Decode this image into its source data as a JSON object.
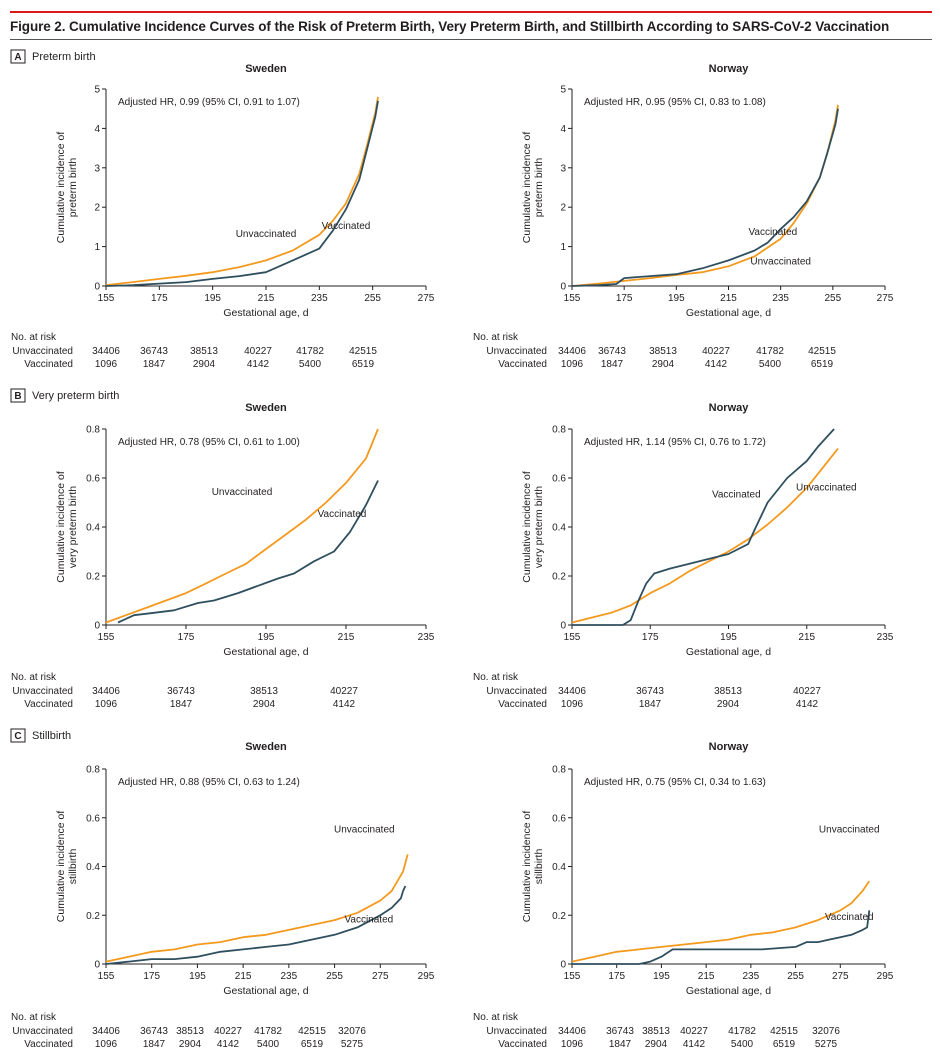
{
  "figure": {
    "title": "Figure 2. Cumulative Incidence Curves of the Risk of Preterm Birth, Very Preterm Birth, and Stillbirth According to SARS-CoV-2 Vaccination"
  },
  "colors": {
    "unvaccinated": "#f39a1e",
    "vaccinated": "#2f4f5f",
    "rule": "#d7191c"
  },
  "chart_data": [
    {
      "type": "line",
      "panel": "A",
      "panel_title": "Preterm birth",
      "title": "Sweden",
      "xlabel": "Gestational age, d",
      "ylabel": [
        "Cumulative incidence of",
        "preterm birth"
      ],
      "xlim": [
        155,
        275
      ],
      "ylim": [
        0,
        5
      ],
      "xticks": [
        "155",
        "175",
        "195",
        "215",
        "235",
        "255",
        "275"
      ],
      "yticks": [
        "0",
        "1",
        "2",
        "3",
        "4",
        "5"
      ],
      "annotation": "Adjusted HR, 0.99 (95% CI, 0.91 to 1.07)",
      "series": [
        {
          "name": "Unvaccinated",
          "label_at": [
            215,
            1.25
          ],
          "x": [
            155,
            165,
            175,
            185,
            195,
            205,
            215,
            225,
            235,
            240,
            245,
            250,
            253,
            256,
            257
          ],
          "y": [
            0.02,
            0.1,
            0.18,
            0.26,
            0.35,
            0.48,
            0.65,
            0.9,
            1.3,
            1.65,
            2.1,
            2.85,
            3.6,
            4.4,
            4.8
          ]
        },
        {
          "name": "Vaccinated",
          "label_at": [
            245,
            1.45
          ],
          "x": [
            155,
            165,
            175,
            185,
            195,
            205,
            215,
            225,
            235,
            240,
            245,
            250,
            253,
            256,
            257
          ],
          "y": [
            0,
            0.02,
            0.06,
            0.1,
            0.18,
            0.25,
            0.35,
            0.65,
            0.95,
            1.4,
            1.95,
            2.7,
            3.5,
            4.3,
            4.7
          ]
        }
      ],
      "at_risk": {
        "header": "No. at risk",
        "rows": [
          {
            "label": "Unvaccinated",
            "values": [
              "34406",
              "36743",
              "38513",
              "40227",
              "41782",
              "42515"
            ]
          },
          {
            "label": "Vaccinated",
            "values": [
              "1096",
              "1847",
              "2904",
              "4142",
              "5400",
              "6519"
            ]
          }
        ]
      }
    },
    {
      "type": "line",
      "panel": "A",
      "title": "Norway",
      "xlabel": "Gestational age, d",
      "ylabel": [
        "Cumulative incidence of",
        "preterm birth"
      ],
      "xlim": [
        155,
        275
      ],
      "ylim": [
        0,
        5
      ],
      "xticks": [
        "155",
        "175",
        "195",
        "215",
        "235",
        "255",
        "275"
      ],
      "yticks": [
        "0",
        "1",
        "2",
        "3",
        "4",
        "5"
      ],
      "annotation": "Adjusted HR, 0.95 (95% CI, 0.83 to 1.08)",
      "series": [
        {
          "name": "Unvaccinated",
          "label_at": [
            235,
            0.55
          ],
          "x": [
            155,
            165,
            175,
            185,
            195,
            205,
            215,
            225,
            235,
            240,
            245,
            250,
            253,
            256,
            257
          ],
          "y": [
            0,
            0.06,
            0.13,
            0.2,
            0.28,
            0.35,
            0.5,
            0.75,
            1.2,
            1.6,
            2.1,
            2.75,
            3.4,
            4.2,
            4.6
          ]
        },
        {
          "name": "Vaccinated",
          "label_at": [
            232,
            1.3
          ],
          "x": [
            155,
            165,
            172,
            175,
            185,
            195,
            205,
            215,
            225,
            230,
            235,
            240,
            245,
            250,
            253,
            256,
            257
          ],
          "y": [
            0,
            0.02,
            0.05,
            0.2,
            0.25,
            0.3,
            0.45,
            0.65,
            0.9,
            1.1,
            1.45,
            1.75,
            2.15,
            2.75,
            3.4,
            4.1,
            4.5
          ]
        }
      ],
      "at_risk": {
        "header": "No. at risk",
        "rows": [
          {
            "label": "Unvaccinated",
            "values": [
              "34406",
              "36743",
              "38513",
              "40227",
              "41782",
              "42515"
            ]
          },
          {
            "label": "Vaccinated",
            "values": [
              "1096",
              "1847",
              "2904",
              "4142",
              "5400",
              "6519"
            ]
          }
        ]
      }
    },
    {
      "type": "line",
      "panel": "B",
      "panel_title": "Very preterm birth",
      "title": "Sweden",
      "xlabel": "Gestational age, d",
      "ylabel": [
        "Cumulative incidence of",
        "very preterm birth"
      ],
      "xlim": [
        155,
        235
      ],
      "ylim": [
        0,
        0.8
      ],
      "xticks": [
        "155",
        "175",
        "195",
        "215",
        "235"
      ],
      "yticks": [
        "0",
        "0.2",
        "0.4",
        "0.6",
        "0.8"
      ],
      "annotation": "Adjusted HR, 0.78 (95% CI, 0.61 to 1.00)",
      "series": [
        {
          "name": "Unvaccinated",
          "label_at": [
            189,
            0.53
          ],
          "x": [
            155,
            160,
            165,
            170,
            175,
            180,
            185,
            190,
            195,
            200,
            205,
            210,
            215,
            220,
            223
          ],
          "y": [
            0.01,
            0.04,
            0.07,
            0.1,
            0.13,
            0.17,
            0.21,
            0.25,
            0.31,
            0.37,
            0.43,
            0.5,
            0.58,
            0.68,
            0.8
          ]
        },
        {
          "name": "Vaccinated",
          "label_at": [
            214,
            0.44
          ],
          "x": [
            158,
            162,
            167,
            172,
            178,
            182,
            188,
            193,
            198,
            202,
            207,
            212,
            216,
            220,
            223
          ],
          "y": [
            0.01,
            0.04,
            0.05,
            0.06,
            0.09,
            0.1,
            0.13,
            0.16,
            0.19,
            0.21,
            0.26,
            0.3,
            0.38,
            0.49,
            0.59
          ]
        }
      ],
      "at_risk": {
        "header": "No. at risk",
        "rows": [
          {
            "label": "Unvaccinated",
            "values": [
              "34406",
              "36743",
              "38513",
              "40227"
            ]
          },
          {
            "label": "Vaccinated",
            "values": [
              "1096",
              "1847",
              "2904",
              "4142"
            ]
          }
        ]
      }
    },
    {
      "type": "line",
      "panel": "B",
      "title": "Norway",
      "xlabel": "Gestational age, d",
      "ylabel": [
        "Cumulative incidence of",
        "very preterm birth"
      ],
      "xlim": [
        155,
        235
      ],
      "ylim": [
        0,
        0.8
      ],
      "xticks": [
        "155",
        "175",
        "195",
        "215",
        "235"
      ],
      "yticks": [
        "0",
        "0.2",
        "0.4",
        "0.6",
        "0.8"
      ],
      "annotation": "Adjusted HR, 1.14 (95% CI, 0.76 to 1.72)",
      "series": [
        {
          "name": "Unvaccinated",
          "label_at": [
            220,
            0.55
          ],
          "x": [
            155,
            160,
            165,
            170,
            175,
            180,
            185,
            190,
            195,
            200,
            205,
            210,
            215,
            220,
            223
          ],
          "y": [
            0.01,
            0.03,
            0.05,
            0.08,
            0.13,
            0.17,
            0.22,
            0.26,
            0.3,
            0.35,
            0.41,
            0.48,
            0.56,
            0.66,
            0.72
          ]
        },
        {
          "name": "Vaccinated",
          "label_at": [
            197,
            0.52
          ],
          "x": [
            155,
            168,
            170,
            172,
            174,
            176,
            180,
            185,
            190,
            195,
            200,
            202,
            205,
            210,
            215,
            218,
            222
          ],
          "y": [
            0,
            0,
            0.02,
            0.1,
            0.17,
            0.21,
            0.23,
            0.25,
            0.27,
            0.29,
            0.33,
            0.4,
            0.5,
            0.6,
            0.67,
            0.73,
            0.8
          ]
        }
      ],
      "at_risk": {
        "header": "No. at risk",
        "rows": [
          {
            "label": "Unvaccinated",
            "values": [
              "34406",
              "36743",
              "38513",
              "40227"
            ]
          },
          {
            "label": "Vaccinated",
            "values": [
              "1096",
              "1847",
              "2904",
              "4142"
            ]
          }
        ]
      }
    },
    {
      "type": "line",
      "panel": "C",
      "panel_title": "Stillbirth",
      "title": "Sweden",
      "xlabel": "Gestational age, d",
      "ylabel": [
        "Cumulative incidence of",
        "stillbirth"
      ],
      "xlim": [
        155,
        295
      ],
      "ylim": [
        0,
        0.8
      ],
      "xticks": [
        "155",
        "175",
        "195",
        "215",
        "235",
        "255",
        "275",
        "295"
      ],
      "yticks": [
        "0",
        "0.2",
        "0.4",
        "0.6",
        "0.8"
      ],
      "annotation": "Adjusted HR, 0.88 (95% CI, 0.63 to 1.24)",
      "series": [
        {
          "name": "Unvaccinated",
          "label_at": [
            268,
            0.54
          ],
          "x": [
            155,
            165,
            175,
            185,
            195,
            205,
            215,
            225,
            235,
            245,
            255,
            265,
            275,
            280,
            285,
            287
          ],
          "y": [
            0.01,
            0.03,
            0.05,
            0.06,
            0.08,
            0.09,
            0.11,
            0.12,
            0.14,
            0.16,
            0.18,
            0.21,
            0.26,
            0.3,
            0.38,
            0.45
          ]
        },
        {
          "name": "Vaccinated",
          "label_at": [
            270,
            0.17
          ],
          "x": [
            155,
            165,
            175,
            185,
            195,
            205,
            215,
            225,
            235,
            245,
            255,
            265,
            275,
            280,
            284,
            285,
            286
          ],
          "y": [
            0,
            0.01,
            0.02,
            0.02,
            0.03,
            0.05,
            0.06,
            0.07,
            0.08,
            0.1,
            0.12,
            0.15,
            0.2,
            0.23,
            0.27,
            0.3,
            0.32
          ]
        }
      ],
      "at_risk": {
        "header": "No. at risk",
        "rows": [
          {
            "label": "Unvaccinated",
            "values": [
              "34406",
              "36743",
              "38513",
              "40227",
              "41782",
              "42515",
              "32076"
            ]
          },
          {
            "label": "Vaccinated",
            "values": [
              "1096",
              "1847",
              "2904",
              "4142",
              "5400",
              "6519",
              "5275"
            ]
          }
        ]
      }
    },
    {
      "type": "line",
      "panel": "C",
      "title": "Norway",
      "xlabel": "Gestational age, d",
      "ylabel": [
        "Cumulative incidence of",
        "stillbirth"
      ],
      "xlim": [
        155,
        295
      ],
      "ylim": [
        0,
        0.8
      ],
      "xticks": [
        "155",
        "175",
        "195",
        "215",
        "235",
        "255",
        "275",
        "295"
      ],
      "yticks": [
        "0",
        "0.2",
        "0.4",
        "0.6",
        "0.8"
      ],
      "annotation": "Adjusted HR, 0.75 (95% CI, 0.34 to 1.63)",
      "series": [
        {
          "name": "Unvaccinated",
          "label_at": [
            279,
            0.54
          ],
          "x": [
            155,
            165,
            175,
            185,
            195,
            205,
            215,
            225,
            235,
            245,
            255,
            265,
            275,
            280,
            285,
            288
          ],
          "y": [
            0.01,
            0.03,
            0.05,
            0.06,
            0.07,
            0.08,
            0.09,
            0.1,
            0.12,
            0.13,
            0.15,
            0.18,
            0.22,
            0.25,
            0.3,
            0.34
          ]
        },
        {
          "name": "Vaccinated",
          "label_at": [
            279,
            0.18
          ],
          "x": [
            155,
            185,
            190,
            195,
            200,
            210,
            225,
            240,
            255,
            260,
            265,
            270,
            275,
            280,
            285,
            287,
            288
          ],
          "y": [
            0,
            0,
            0.01,
            0.03,
            0.06,
            0.06,
            0.06,
            0.06,
            0.07,
            0.09,
            0.09,
            0.1,
            0.11,
            0.12,
            0.14,
            0.15,
            0.22
          ]
        }
      ],
      "at_risk": {
        "header": "No. at risk",
        "rows": [
          {
            "label": "Unvaccinated",
            "values": [
              "34406",
              "36743",
              "38513",
              "40227",
              "41782",
              "42515",
              "32076"
            ]
          },
          {
            "label": "Vaccinated",
            "values": [
              "1096",
              "1847",
              "2904",
              "4142",
              "5400",
              "6519",
              "5275"
            ]
          }
        ]
      }
    }
  ]
}
